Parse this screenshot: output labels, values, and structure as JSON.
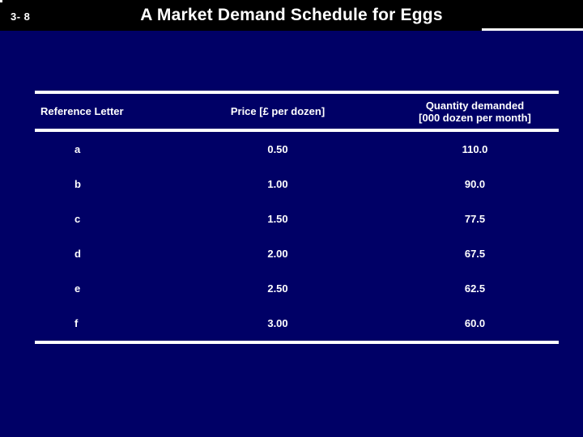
{
  "slide": {
    "slide_number": "3- 8",
    "title": "A Market Demand Schedule for Eggs"
  },
  "table": {
    "headers": {
      "reference": "Reference Letter",
      "price": "Price [£ per dozen]",
      "quantity_line1": "Quantity demanded",
      "quantity_line2": "[000 dozen per month]"
    },
    "rows": [
      {
        "letter": "a",
        "price": "0.50",
        "quantity": "110.0"
      },
      {
        "letter": "b",
        "price": "1.00",
        "quantity": "90.0"
      },
      {
        "letter": "c",
        "price": "1.50",
        "quantity": "77.5"
      },
      {
        "letter": "d",
        "price": "2.00",
        "quantity": "67.5"
      },
      {
        "letter": "e",
        "price": "2.50",
        "quantity": "62.5"
      },
      {
        "letter": "f",
        "price": "3.00",
        "quantity": "60.0"
      }
    ]
  },
  "colors": {
    "background": "#000066",
    "title_bar": "#000000",
    "text": "#ffffff",
    "rule": "#ffffff"
  }
}
